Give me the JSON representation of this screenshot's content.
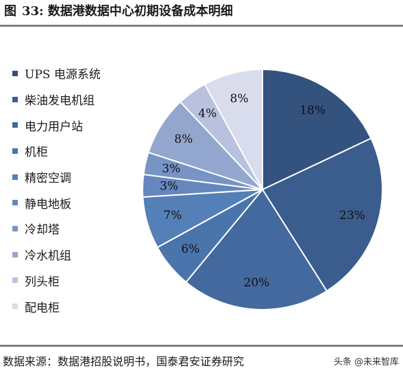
{
  "figure": {
    "label": "图",
    "number": "33:",
    "title": "数据港数据中心初期设备成本明细"
  },
  "source": "数据来源：数据港招股说明书，国泰君安证券研究",
  "watermark": "头条 @未来智库",
  "chart_data": {
    "type": "pie",
    "categories": [
      "UPS 电源系统",
      "柴油发电机组",
      "电力用户站",
      "机柜",
      "精密空调",
      "静电地板",
      "冷却塔",
      "冷水机组",
      "列头柜",
      "配电柜"
    ],
    "values": [
      18,
      23,
      20,
      6,
      7,
      3,
      3,
      8,
      4,
      8
    ],
    "labels": [
      "18%",
      "23%",
      "20%",
      "6%",
      "7%",
      "3%",
      "3%",
      "8%",
      "4%",
      "8%"
    ],
    "colors": [
      "#34527e",
      "#3a5d8e",
      "#44699e",
      "#4a74ac",
      "#557fb7",
      "#6587bd",
      "#7894c5",
      "#93a6ce",
      "#b8c2de",
      "#d9dced"
    ],
    "legend_position": "left",
    "start": "12 o'clock",
    "direction": "clockwise"
  }
}
